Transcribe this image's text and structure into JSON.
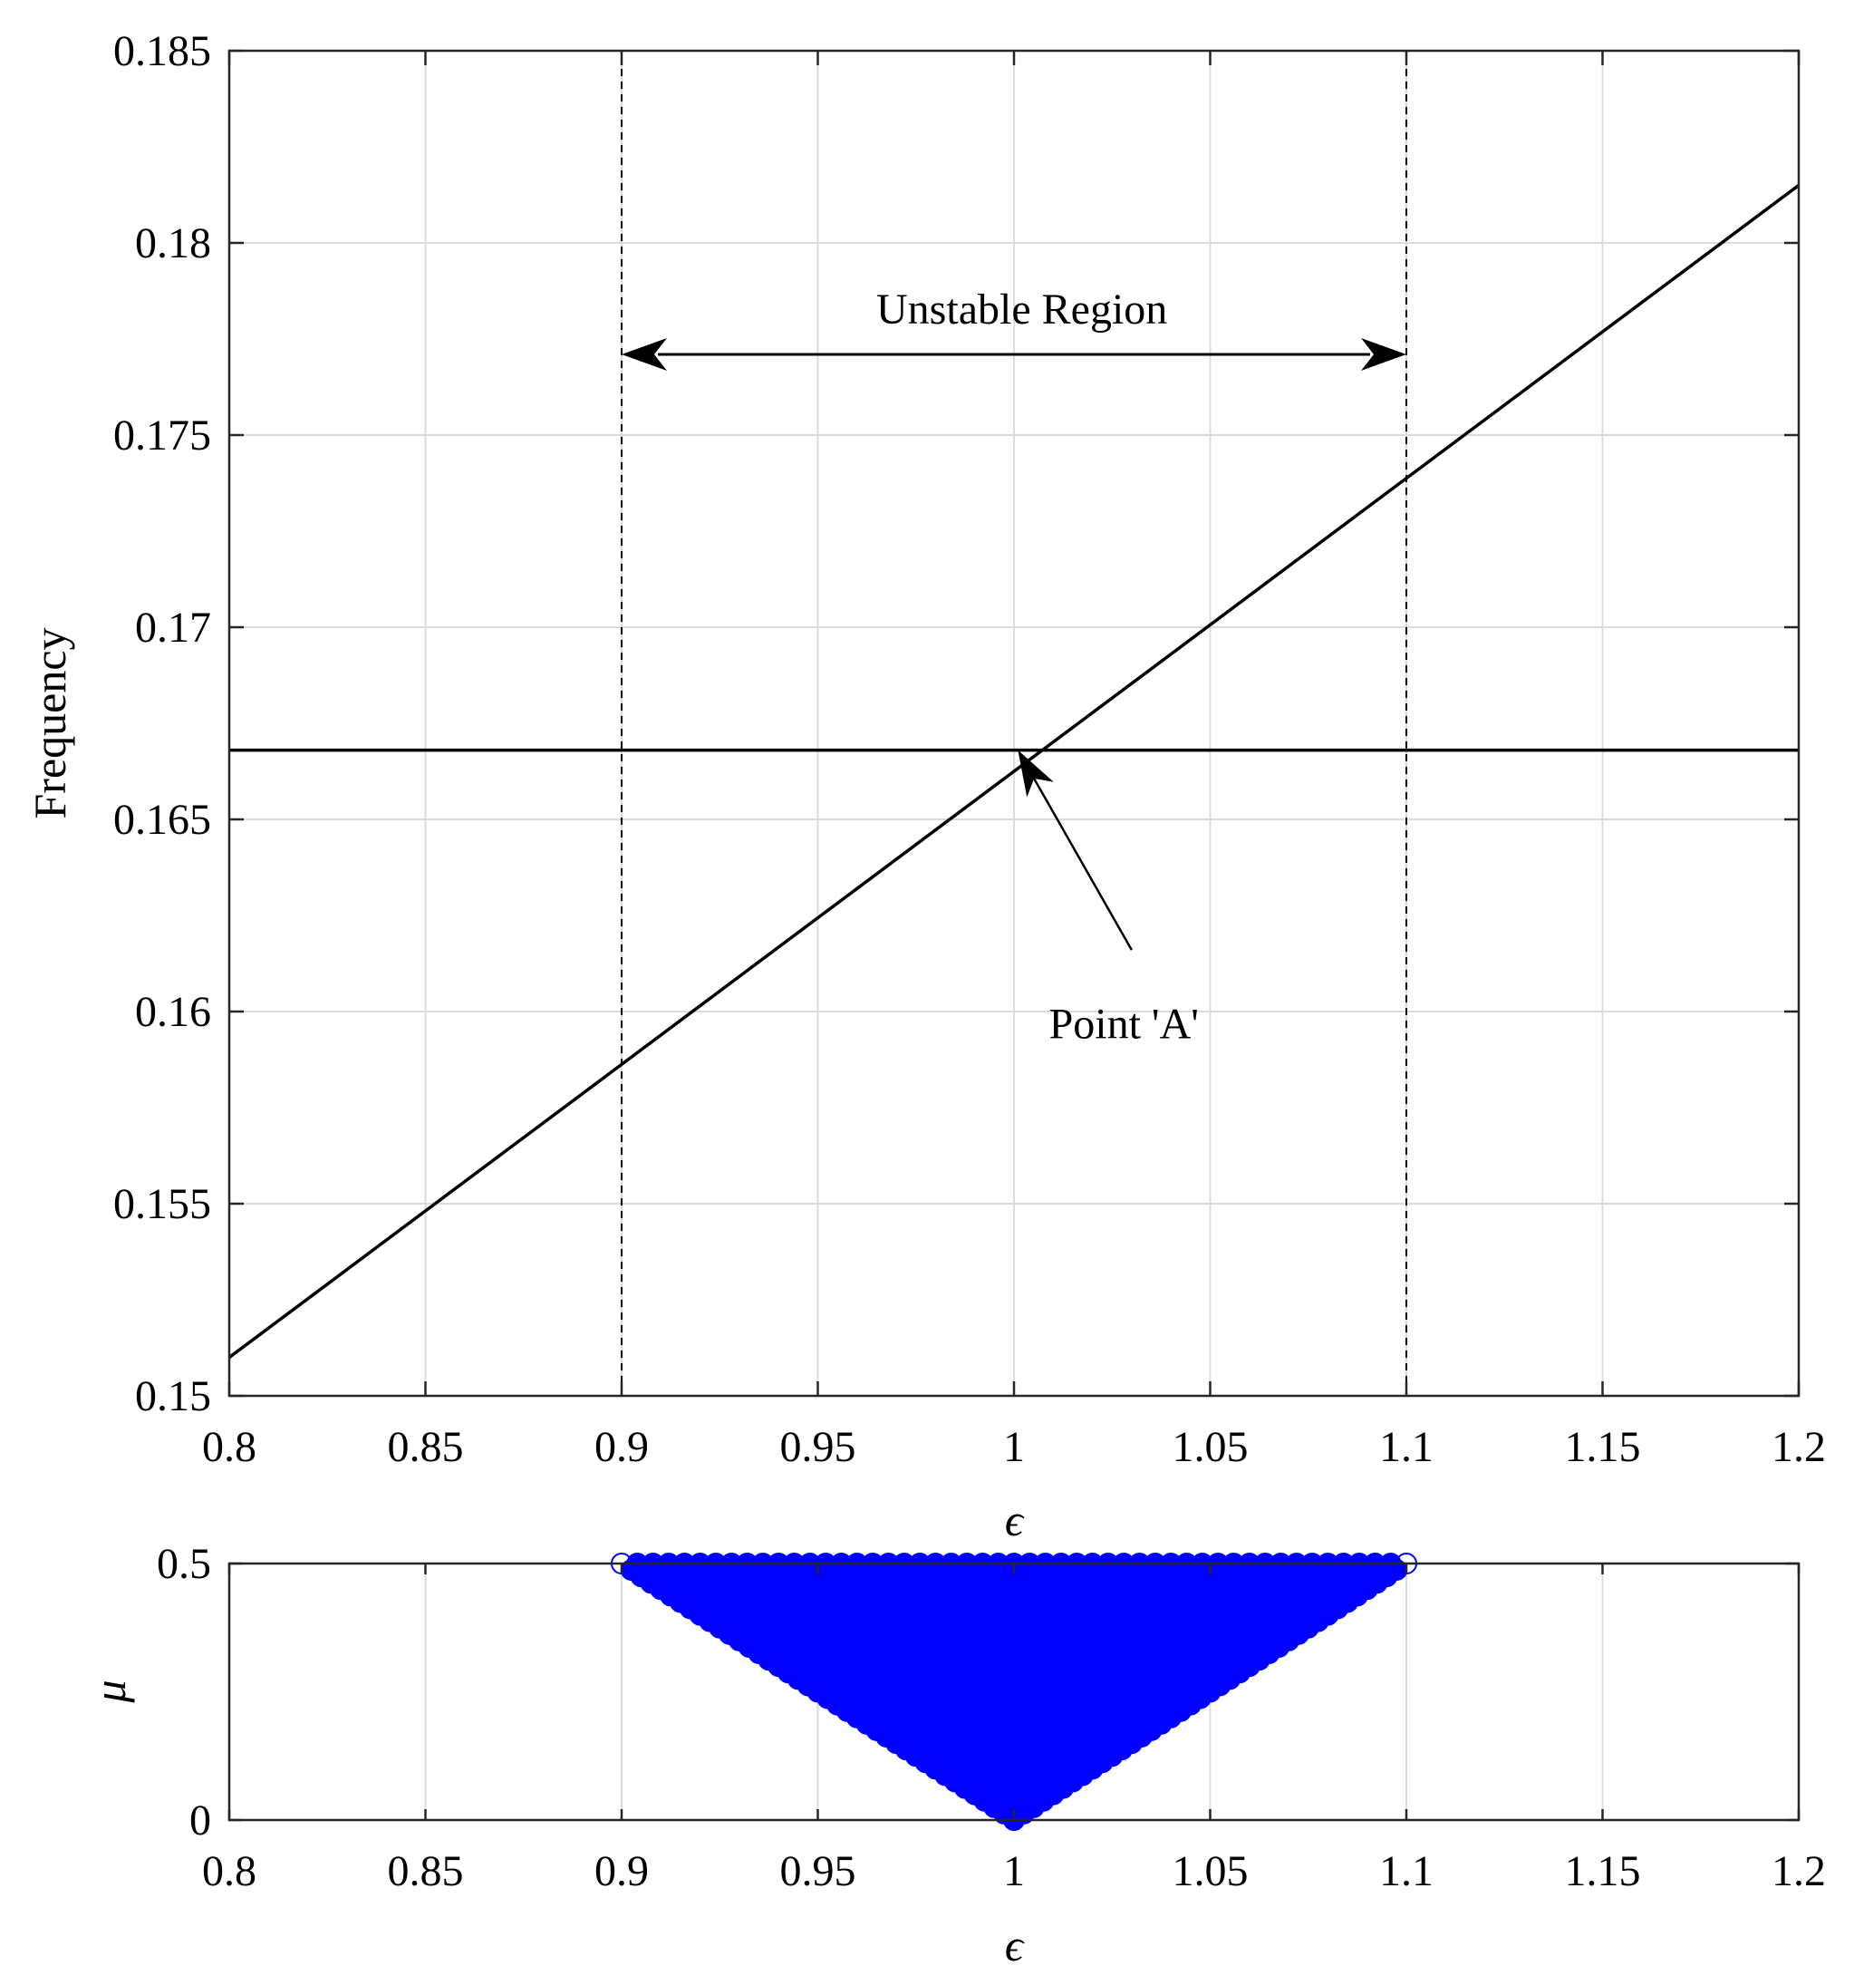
{
  "chart_data": [
    {
      "type": "line",
      "xlabel": "ϵ",
      "ylabel": "Frequency",
      "xlim": [
        0.8,
        1.2
      ],
      "ylim": [
        0.15,
        0.185
      ],
      "xticks": [
        "0.8",
        "0.85",
        "0.9",
        "0.95",
        "1",
        "1.05",
        "1.1",
        "1.15",
        "1.2"
      ],
      "yticks": [
        "0.15",
        "0.155",
        "0.16",
        "0.165",
        "0.17",
        "0.175",
        "0.18",
        "0.185"
      ],
      "grid": true,
      "series": [
        {
          "x": [
            0.8,
            1.2
          ],
          "y": [
            0.151,
            0.1815
          ],
          "color": "#000000",
          "style": "solid"
        },
        {
          "x": [
            0.8,
            1.2
          ],
          "y": [
            0.1668,
            0.1668
          ],
          "color": "#000000",
          "style": "solid"
        },
        {
          "x": [
            0.9,
            0.9
          ],
          "y": [
            0.15,
            0.185
          ],
          "color": "#000000",
          "style": "dashed"
        },
        {
          "x": [
            1.1,
            1.1
          ],
          "y": [
            0.15,
            0.185
          ],
          "color": "#000000",
          "style": "dashed"
        }
      ],
      "annotations": [
        {
          "text": "Unstable Region",
          "x": 1.002,
          "y": 0.1779
        },
        {
          "text": "Point 'A'",
          "x": 1.028,
          "y": 0.1593
        }
      ],
      "region_arrow": {
        "x_start": 0.9,
        "x_end": 1.1,
        "y": 0.1771
      },
      "point_arrow": {
        "from": [
          1.03,
          0.1616
        ],
        "to": [
          1.001,
          0.1668
        ]
      }
    },
    {
      "type": "scatter",
      "xlabel": "ϵ",
      "ylabel": "μ",
      "xlim": [
        0.8,
        1.2
      ],
      "ylim": [
        0,
        0.5
      ],
      "xticks": [
        "0.8",
        "0.85",
        "0.9",
        "0.95",
        "1",
        "1.05",
        "1.1",
        "1.15",
        "1.2"
      ],
      "yticks": [
        "0",
        "0.5"
      ],
      "grid": true,
      "marker": "open-circle",
      "color": "#0000ff",
      "region": {
        "apex": [
          1.0,
          0.0
        ],
        "left": [
          0.9,
          0.5
        ],
        "right": [
          1.1,
          0.5
        ]
      }
    }
  ]
}
